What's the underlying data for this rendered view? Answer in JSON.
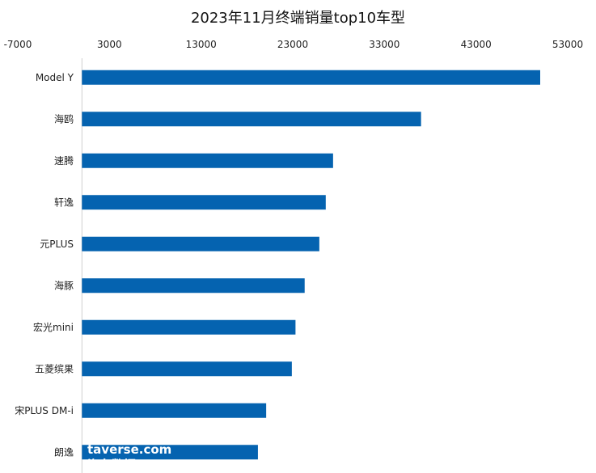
{
  "chart_data": {
    "type": "bar",
    "orientation": "horizontal",
    "title": "2023年11月终端销量top10车型",
    "categories": [
      "Model Y",
      "海鸥",
      "速腾",
      "轩逸",
      "元PLUS",
      "海豚",
      "宏光mini",
      "五菱缤果",
      "宋PLUS DM-i",
      "朗逸"
    ],
    "values": [
      50000,
      37000,
      27400,
      26600,
      25900,
      24300,
      23300,
      22900,
      20100,
      19200
    ],
    "xlim": [
      -7000,
      53000
    ],
    "xticks": [
      -7000,
      3000,
      13000,
      23000,
      33000,
      43000,
      53000
    ],
    "xtick_labels": [
      "-7000",
      "3000",
      "13000",
      "23000",
      "33000",
      "43000",
      "53000"
    ],
    "axis_position": "top",
    "bar_color": "#0563B0",
    "grid": false,
    "legend": "none"
  },
  "watermark": {
    "line1": "taverse.com",
    "line2": "汽车数据"
  }
}
